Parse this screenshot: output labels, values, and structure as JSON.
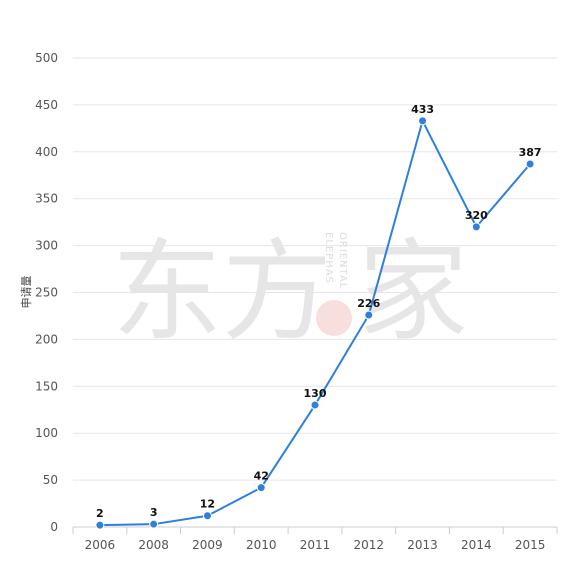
{
  "chart_data": {
    "type": "line",
    "title": "",
    "xlabel": "",
    "ylabel": "申请量",
    "categories": [
      "2006",
      "2008",
      "2009",
      "2010",
      "2011",
      "2012",
      "2013",
      "2014",
      "2015"
    ],
    "series": [
      {
        "values": [
          2,
          3,
          12,
          42,
          130,
          226,
          433,
          320,
          387
        ]
      }
    ],
    "ylim": [
      0,
      500
    ],
    "yticks": [
      0,
      50,
      100,
      150,
      200,
      250,
      300,
      350,
      400,
      450,
      500
    ],
    "grid": true,
    "legend": "none",
    "data_labels": true,
    "line_color": "#2f7fdc",
    "grid_color": "#e6e6e6"
  },
  "watermark": {
    "text_left": "东方",
    "text_right": "家",
    "text_vertical_1": "ORIENTAL",
    "text_vertical_2": "ELEPHAS"
  }
}
